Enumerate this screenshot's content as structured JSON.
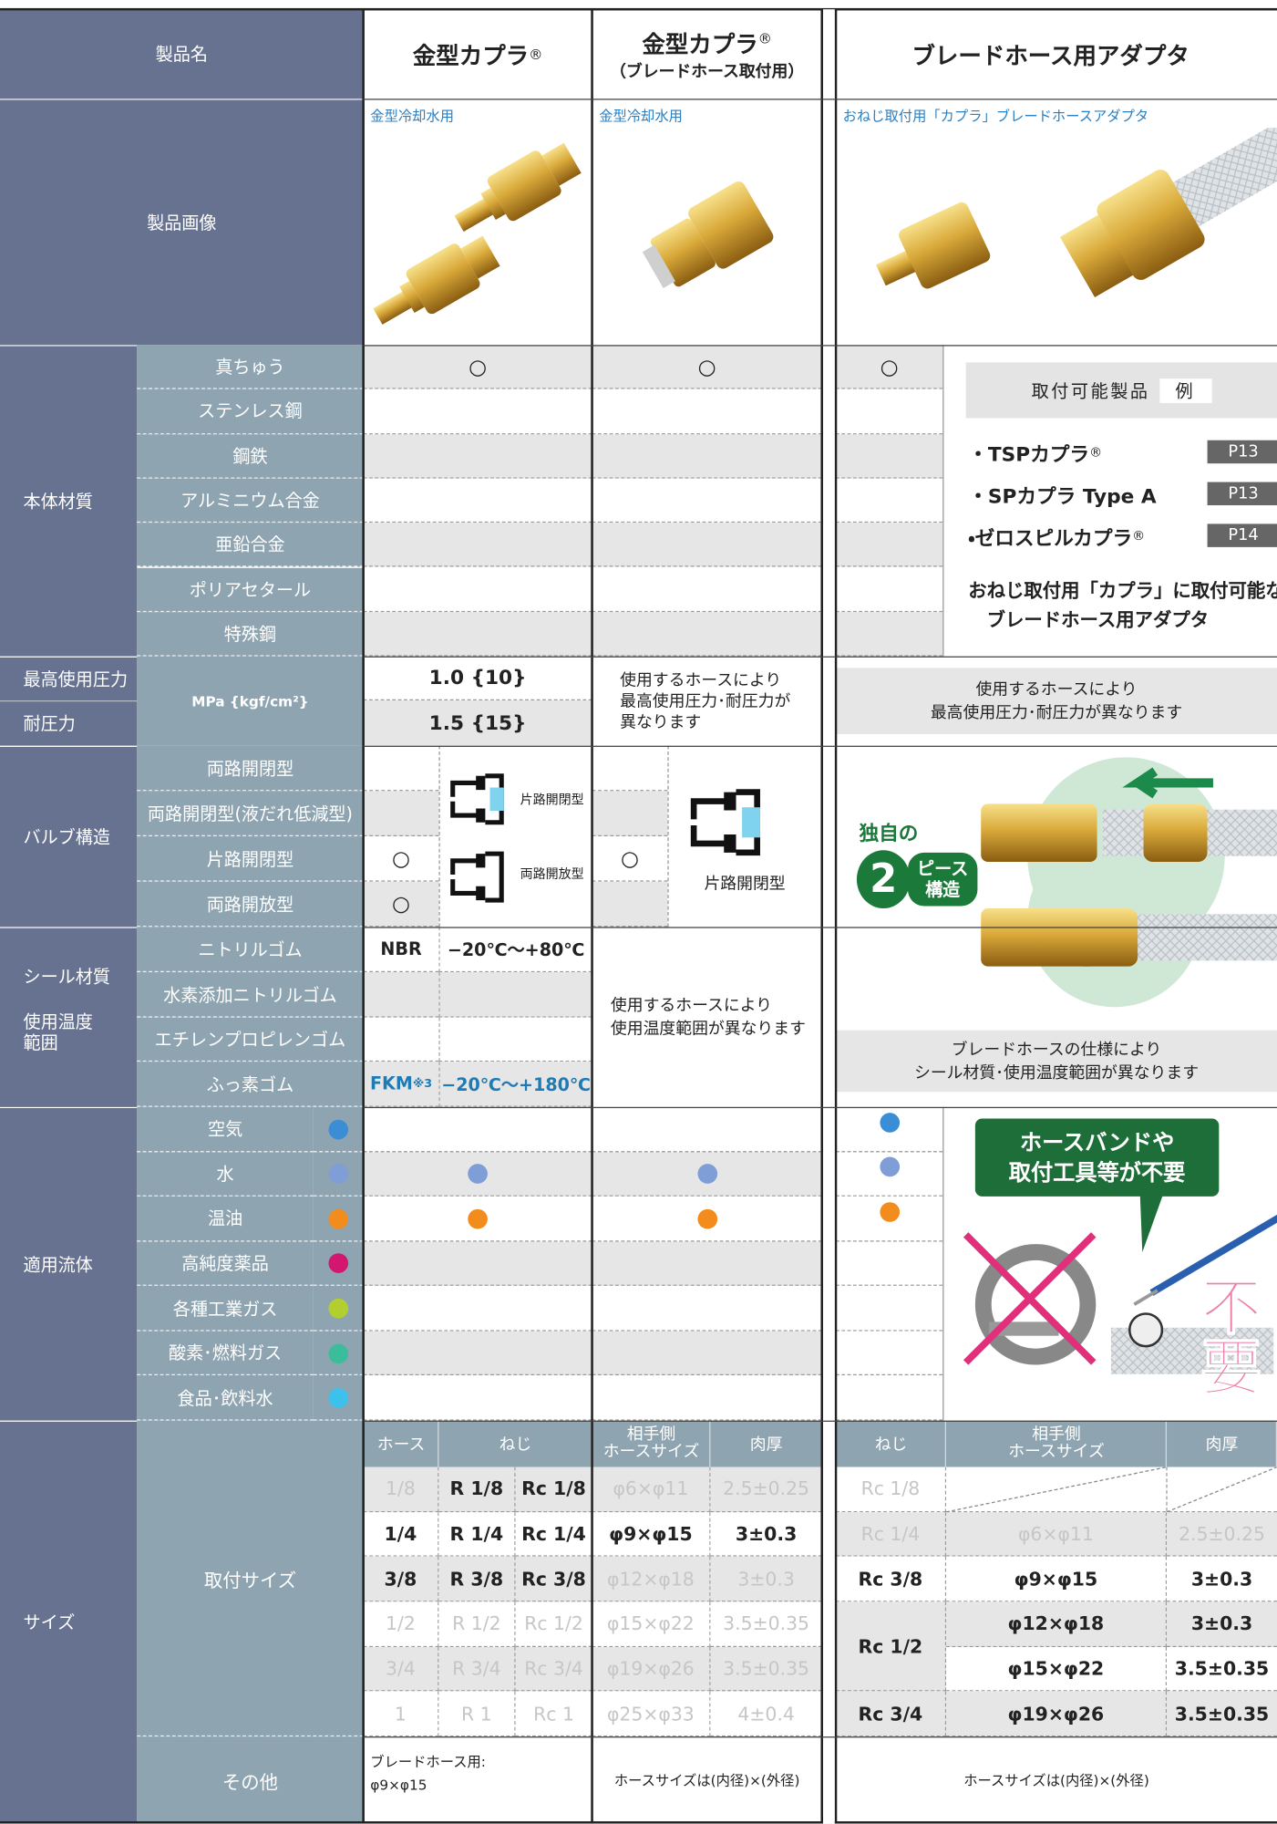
{
  "header": {
    "product_name": "製品名",
    "col_a": "金型カプラ",
    "col_a_mark": "®",
    "col_b": "金型カプラ",
    "col_b_mark": "®",
    "col_b_sub": "（ブレードホース取付用）",
    "col_c": "ブレードホース用アダプタ"
  },
  "images": {
    "label": "製品画像",
    "col_a_caption": "金型冷却水用",
    "col_b_caption": "金型冷却水用",
    "col_c_caption": "おねじ取付用「カプラ」ブレードホースアダプタ"
  },
  "material": {
    "label": "本体材質",
    "items": [
      "真ちゅう",
      "ステンレス鋼",
      "鋼鉄",
      "アルミニウム合金",
      "亜鉛合金",
      "ポリアセタール",
      "特殊鋼"
    ],
    "col_a": "○",
    "col_b": "○",
    "col_c": "○"
  },
  "compatible": {
    "title": "取付可能製品",
    "title_tag": "例",
    "items": [
      {
        "name": "・TSPカプラ",
        "mark": "®",
        "page": "P13"
      },
      {
        "name": "・SPカプラ Type A",
        "page": "P13"
      },
      {
        "name": "・ゼロスピルカプラ",
        "mark": "®",
        "page": "P14"
      }
    ],
    "note_line1": "おねじ取付用「カプラ」に取付可能な",
    "note_line2": "ブレードホース用アダプタ"
  },
  "pressure": {
    "max_label": "最高使用圧力",
    "proof_label": "耐圧力",
    "unit": "MPa {kgf/cm²}",
    "col_a_max": "1.0 {10}",
    "col_a_proof": "1.5 {15}",
    "col_b_note": [
      "使用するホースにより",
      "最高使用圧力･耐圧力が",
      "異なります"
    ],
    "col_c_note": [
      "使用するホースにより",
      "最高使用圧力･耐圧力が異なります"
    ]
  },
  "valve": {
    "label": "バルブ構造",
    "items": [
      "両路開閉型",
      "両路開閉型(液だれ低減型)",
      "片路開閉型",
      "両路開放型"
    ],
    "col_a_marks": [
      null,
      null,
      "○",
      "○"
    ],
    "col_b_marks": [
      null,
      null,
      "○",
      null
    ],
    "col_a_diagram_1": "片路開閉型",
    "col_a_diagram_2": "両路開放型",
    "col_b_diagram": "片路開閉型",
    "col_c_badge": {
      "lead": "独自の",
      "number": "2",
      "text_1": "ピース",
      "text_2": "構造"
    }
  },
  "seal": {
    "label_1": "シール材質",
    "label_2": [
      "使用温度",
      "範囲"
    ],
    "items": [
      "ニトリルゴム",
      "水素添加ニトリルゴム",
      "エチレンプロピレンゴム",
      "ふっ素ゴム"
    ],
    "col_a": [
      {
        "material": "NBR",
        "temp": "−20℃～+80℃"
      },
      null,
      null,
      {
        "material": "FKM",
        "note": "※3",
        "temp": "−20℃～+180℃"
      }
    ],
    "col_b_note": [
      "使用するホースにより",
      "使用温度範囲が異なります"
    ],
    "col_c_note": [
      "ブレードホースの仕様により",
      "シール材質･使用温度範囲が異なります"
    ]
  },
  "fluid": {
    "label": "適用流体",
    "items": [
      {
        "name": "空気",
        "color": "#3b8ed6",
        "col_c": true
      },
      {
        "name": "水",
        "color": "#7f9dd6",
        "col_a": true,
        "col_b": true,
        "col_c": true
      },
      {
        "name": "温油",
        "color": "#f28c1c",
        "col_a": true,
        "col_b": true,
        "col_c": true
      },
      {
        "name": "高純度薬品",
        "color": "#d3166f"
      },
      {
        "name": "各種工業ガス",
        "color": "#b3cf2f"
      },
      {
        "name": "酸素･燃料ガス",
        "color": "#3bbd9c"
      },
      {
        "name": "食品･飲料水",
        "color": "#3cc0ec"
      }
    ],
    "callout_1": "ホースバンドや",
    "callout_2": "取付工具等が不要",
    "no_need": "不要"
  },
  "size": {
    "label": "サイズ",
    "attach_label": "取付サイズ",
    "other_label": "その他",
    "col_a_headers": [
      "ホース",
      "ねじ"
    ],
    "col_b_headers": {
      "hose": [
        "相手側",
        "ホースサイズ"
      ],
      "wall": "肉厚"
    },
    "col_c_headers": {
      "thread": "ねじ",
      "hose": [
        "相手側",
        "ホースサイズ"
      ],
      "wall": "肉厚"
    },
    "col_a_rows": [
      {
        "hose": "1/8",
        "r": "R 1/8",
        "rc": "Rc 1/8",
        "muted": [
          true,
          false,
          false
        ]
      },
      {
        "hose": "1/4",
        "r": "R 1/4",
        "rc": "Rc 1/4",
        "muted": [
          false,
          false,
          false
        ]
      },
      {
        "hose": "3/8",
        "r": "R 3/8",
        "rc": "Rc 3/8",
        "muted": [
          false,
          false,
          false
        ]
      },
      {
        "hose": "1/2",
        "r": "R 1/2",
        "rc": "Rc 1/2",
        "muted": [
          true,
          true,
          true
        ]
      },
      {
        "hose": "3/4",
        "r": "R 3/4",
        "rc": "Rc 3/4",
        "muted": [
          true,
          true,
          true
        ]
      },
      {
        "hose": "1",
        "r": "R 1",
        "rc": "Rc 1",
        "muted": [
          true,
          true,
          true
        ]
      }
    ],
    "col_b_rows": [
      {
        "hose": "φ6×φ11",
        "wall": "2.5±0.25",
        "muted": true
      },
      {
        "hose": "φ9×φ15",
        "wall": "3±0.3"
      },
      {
        "hose": "φ12×φ18",
        "wall": "3±0.3",
        "muted": true
      },
      {
        "hose": "φ15×φ22",
        "wall": "3.5±0.35",
        "muted": true
      },
      {
        "hose": "φ19×φ26",
        "wall": "3.5±0.35",
        "muted": true
      },
      {
        "hose": "φ25×φ33",
        "wall": "4±0.4",
        "muted": true
      }
    ],
    "col_c_rows": [
      {
        "thread": "Rc 1/8",
        "muted": true
      },
      {
        "thread": "Rc 1/4",
        "hose": "φ6×φ11",
        "wall": "2.5±0.25",
        "muted": true
      },
      {
        "thread": "Rc 3/8",
        "hose": "φ9×φ15",
        "wall": "3±0.3"
      },
      {
        "thread": "Rc 1/2",
        "hose": "φ12×φ18",
        "wall": "3±0.3"
      },
      {
        "hose": "φ15×φ22",
        "wall": "3.5±0.35"
      },
      {
        "thread": "Rc 3/4",
        "hose": "φ19×φ26",
        "wall": "3.5±0.35"
      }
    ],
    "other": {
      "col_a": [
        "ブレードホース用:",
        "φ9×φ15"
      ],
      "col_b": "ホースサイズは(内径)×(外径)",
      "col_c": "ホースサイズは(内径)×(外径)"
    }
  }
}
